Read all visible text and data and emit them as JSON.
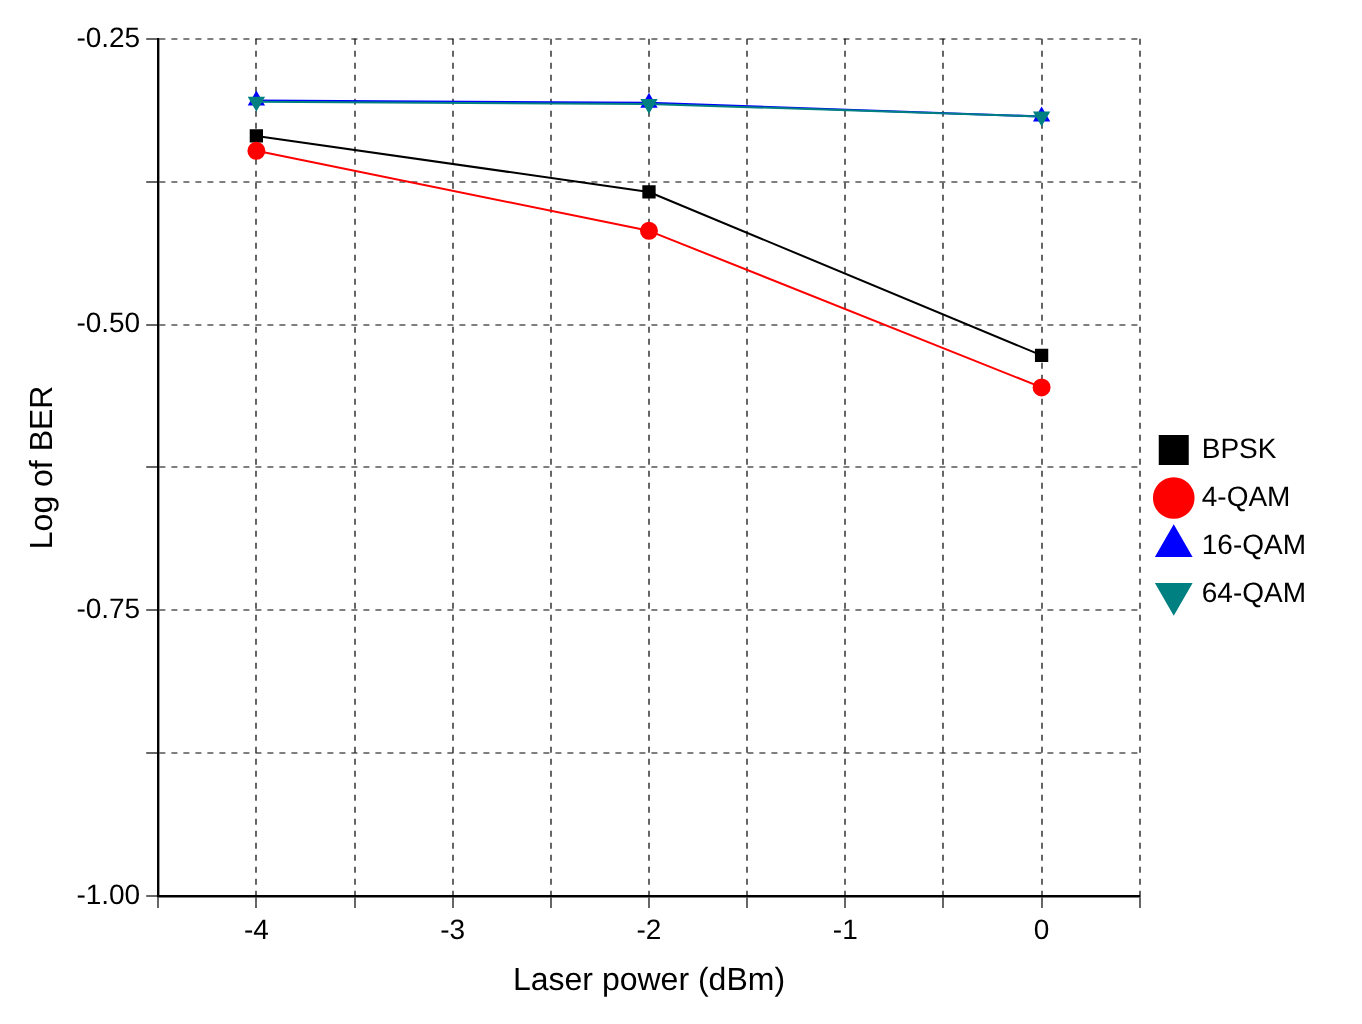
{
  "chart_data": {
    "type": "line",
    "xlabel": "Laser power (dBm)",
    "ylabel": "Log of BER",
    "x": [
      -4,
      -2,
      0
    ],
    "series": [
      {
        "name": "BPSK",
        "color": "#000000",
        "marker": "square",
        "values": [
          -0.335,
          -0.384,
          -0.527
        ]
      },
      {
        "name": "4-QAM",
        "color": "#ff0000",
        "marker": "circle",
        "values": [
          -0.348,
          -0.418,
          -0.555
        ]
      },
      {
        "name": "16-QAM",
        "color": "#0000ff",
        "marker": "triangle",
        "values": [
          -0.304,
          -0.306,
          -0.318
        ]
      },
      {
        "name": "64-QAM",
        "color": "#008080",
        "marker": "triangle-down",
        "values": [
          -0.305,
          -0.307,
          -0.318
        ]
      }
    ],
    "xlim": [
      -4.5,
      0.5
    ],
    "xticks": [
      {
        "value": -4.5,
        "label": null
      },
      -4,
      {
        "value": -3.5,
        "label": null
      },
      -3,
      {
        "value": -2.5,
        "label": null
      },
      -2,
      {
        "value": -1.5,
        "label": null
      },
      -1,
      {
        "value": -0.5,
        "label": null
      },
      0,
      {
        "value": 0.5,
        "label": null
      }
    ],
    "ylim": [
      -1.0,
      -0.25
    ],
    "yticks": [
      {
        "value": -1.0,
        "label": "-1.00"
      },
      {
        "value": -0.875,
        "label": null
      },
      {
        "value": -0.75,
        "label": "-0.75"
      },
      {
        "value": -0.625,
        "label": null
      },
      {
        "value": -0.5,
        "label": "-0.50"
      },
      {
        "value": -0.375,
        "label": null
      },
      {
        "value": -0.25,
        "label": "-0.25"
      }
    ],
    "grid": true,
    "legend": "right",
    "line_style": "solid"
  }
}
